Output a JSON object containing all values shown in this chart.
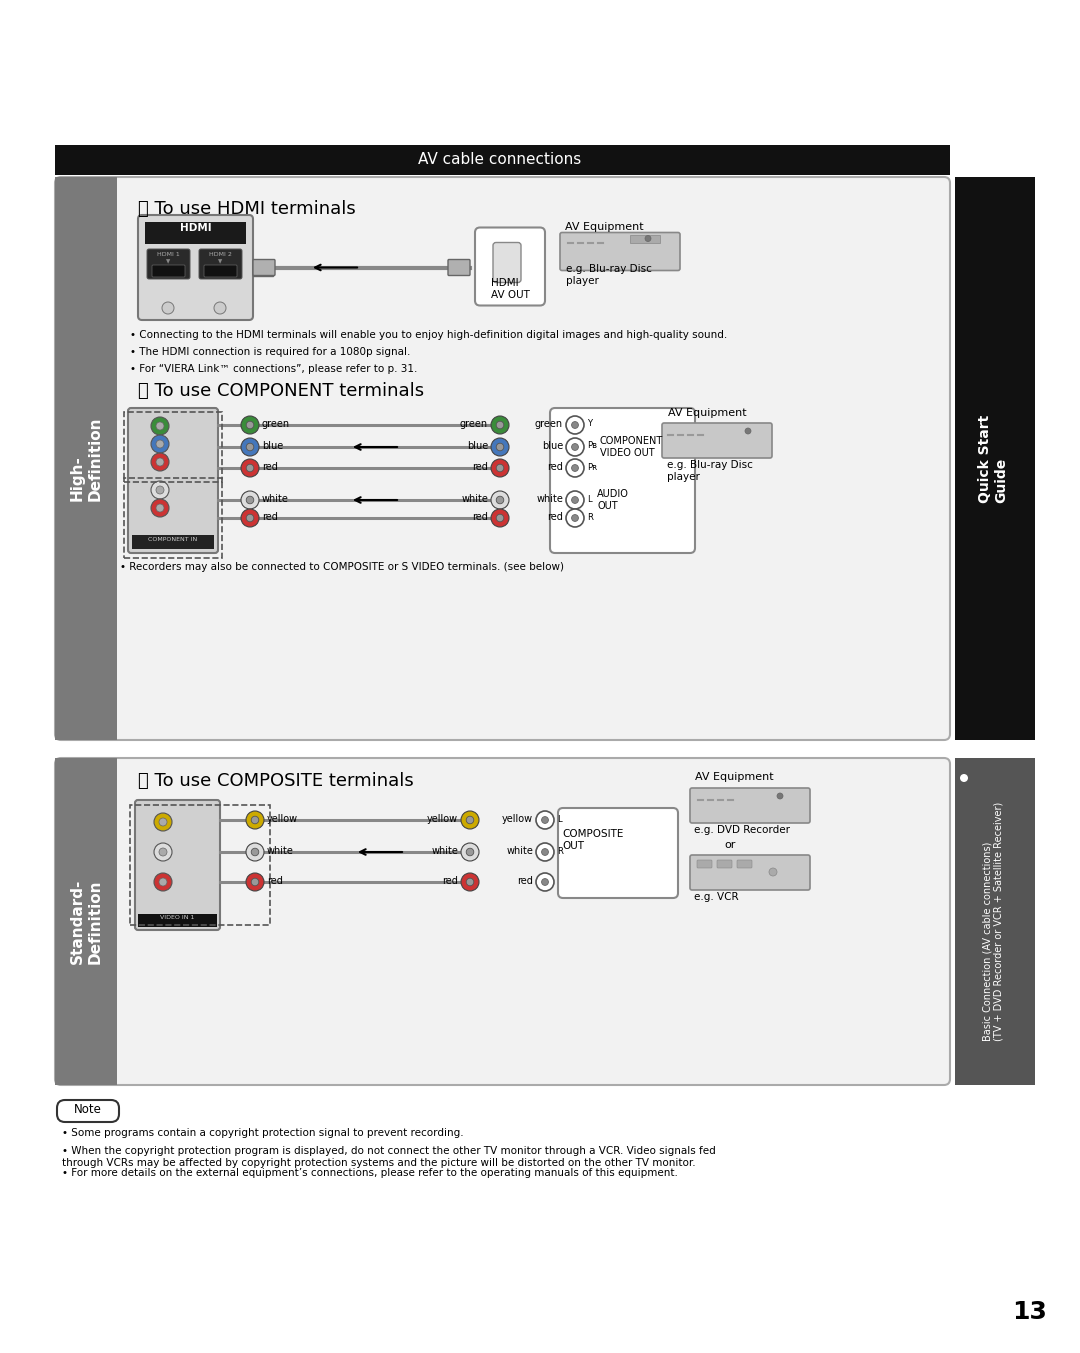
{
  "bg_color": "#ffffff",
  "title_bar_color": "#000000",
  "title_bar_text": "AV cable connections",
  "title_bar_text_color": "#ffffff",
  "hd_label": "High-\nDefinition",
  "sd_label": "Standard-\nDefinition",
  "section_a_title": "Ⓐ To use HDMI terminals",
  "section_b_title": "Ⓑ To use COMPONENT terminals",
  "section_c_title": "Ⓒ To use COMPOSITE terminals",
  "hdmi_bullets": [
    "Connecting to the HDMI terminals will enable you to enjoy high-definition digital images and high-quality sound.",
    "The HDMI connection is required for a 1080p signal.",
    "For “VIERA Link™ connections”, please refer to p. 31."
  ],
  "component_bullet": "Recorders may also be connected to COMPOSITE or S VIDEO terminals. (see below)",
  "sidebar_title": "Quick Start\nGuide",
  "sidebar_sub": "Basic Connection (AV cable connections)\n(TV + DVD Recorder or VCR + Satellite Receiver)",
  "note_title": "Note",
  "note_bullets": [
    "Some programs contain a copyright protection signal to prevent recording.",
    "When the copyright protection program is displayed, do not connect the other TV monitor through a VCR. Video signals fed\nthrough VCRs may be affected by copyright protection systems and the picture will be distorted on the other TV monitor.",
    "For more details on the external equipment’s connections, please refer to the operating manuals of this equipment."
  ],
  "page_number": "13"
}
